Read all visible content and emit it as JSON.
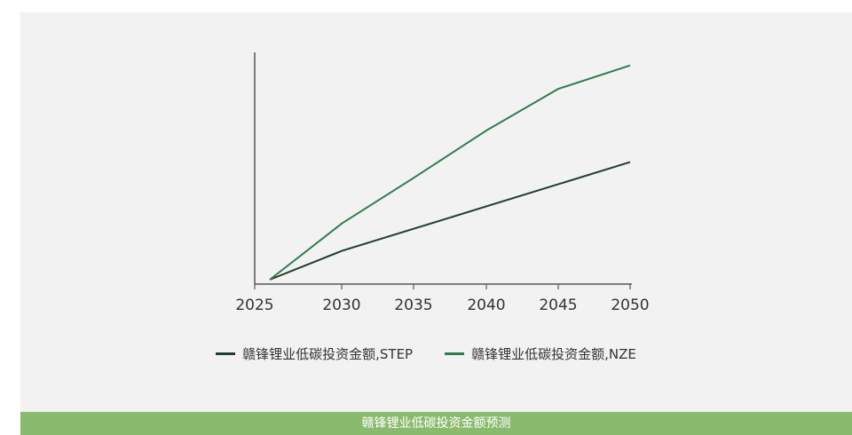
{
  "chart_data": {
    "type": "line",
    "title": "",
    "xlabel": "",
    "ylabel": "",
    "x": [
      2025,
      2030,
      2035,
      2040,
      2045,
      2050
    ],
    "series": [
      {
        "name": "赣锋锂业低碳投资金额,STEP",
        "color": "#1f3d2a",
        "values": [
          0,
          11,
          19.5,
          28,
          36.5,
          45
        ]
      },
      {
        "name": "赣锋锂业低碳投资金额,NZE",
        "color": "#2e7d4f",
        "values": [
          0,
          21.5,
          39,
          57,
          73,
          82
        ]
      }
    ],
    "ylim": [
      0,
      87
    ],
    "xlim": [
      2024,
      2050
    ],
    "legend_position": "bottom",
    "grid": false
  },
  "footer": {
    "caption": "赣锋锂业低碳投资金额预测"
  },
  "colors": {
    "background": "#f2f2f2",
    "footer_bar": "#8aba6e",
    "axis": "#555555"
  }
}
